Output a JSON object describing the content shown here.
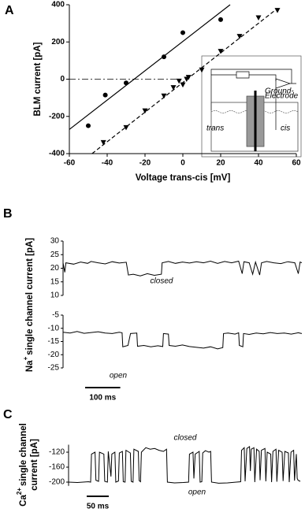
{
  "chart_data": [
    {
      "type": "scatter",
      "panel_label": "A",
      "xlabel": "Voltage trans-cis [mV]",
      "ylabel": "BLM current [pA]",
      "xlim": [
        -60,
        60
      ],
      "xticks": [
        -60,
        -40,
        -20,
        0,
        20,
        40,
        60
      ],
      "ylim": [
        -400,
        400
      ],
      "yticks": [
        -400,
        -200,
        0,
        200,
        400
      ],
      "series": [
        {
          "marker": "circle",
          "color": "#000000",
          "x": [
            -50,
            -41,
            -30,
            -10,
            0,
            20
          ],
          "values": [
            -250,
            -85,
            -20,
            120,
            250,
            320
          ]
        },
        {
          "marker": "triangle",
          "color": "#000000",
          "x": [
            -42,
            -30,
            -20,
            -10,
            -5,
            -2,
            0,
            2,
            3,
            10,
            20,
            30,
            40,
            50
          ],
          "values": [
            -340,
            -260,
            -170,
            -90,
            -45,
            -10,
            -30,
            0,
            10,
            50,
            150,
            230,
            330,
            370
          ]
        },
        {
          "style": "solid",
          "color": "#000000",
          "x": [
            -60,
            25
          ],
          "values": [
            -270,
            400
          ]
        },
        {
          "style": "dashed",
          "color": "#000000",
          "x": [
            -48,
            50
          ],
          "values": [
            -400,
            380
          ]
        },
        {
          "style": "dashdot",
          "color": "#000000",
          "x": [
            -60,
            0
          ],
          "values": [
            0,
            0
          ]
        }
      ],
      "inset": {
        "labels": [
          "trans",
          "cis",
          "Ground-",
          "Electrode"
        ]
      }
    },
    {
      "type": "line",
      "panel_label": "B",
      "ylabel": {
        "element": "Na",
        "charge": "+",
        "lines": [
          "single channel current [pA]"
        ]
      },
      "annotation": "closed",
      "xlim": [
        0,
        680
      ],
      "ylim": [
        10,
        30
      ],
      "yticks": [
        10,
        15,
        20,
        25,
        30
      ],
      "color": "#000000",
      "x": [
        0,
        5,
        8,
        30,
        50,
        70,
        80,
        100,
        120,
        140,
        160,
        180,
        186,
        200,
        220,
        240,
        260,
        280,
        282,
        300,
        320,
        340,
        360,
        380,
        400,
        420,
        440,
        460,
        480,
        500,
        510,
        515,
        530,
        540,
        548,
        560,
        565,
        580,
        600,
        620,
        640,
        660,
        670,
        675,
        680
      ],
      "values": [
        22,
        18.5,
        22,
        21.5,
        22.3,
        21.8,
        22.5,
        22,
        21.6,
        22.4,
        21.9,
        22.2,
        17.5,
        17.8,
        17.2,
        18,
        17.4,
        17.8,
        22,
        22.5,
        21.8,
        22.3,
        21.9,
        22.4,
        22,
        22.6,
        21.8,
        22.5,
        22,
        22.6,
        18,
        22.4,
        22,
        17.8,
        22.3,
        17.5,
        22,
        22.5,
        22,
        21.7,
        22.4,
        22,
        18,
        22.3,
        22
      ]
    },
    {
      "type": "line",
      "annotation": "open",
      "scalebar": {
        "value": 100,
        "label": "100 ms"
      },
      "xlim": [
        0,
        680
      ],
      "ylim": [
        -25,
        -5
      ],
      "yticks": [
        -25,
        -20,
        -15,
        -10,
        -5
      ],
      "color": "#000000",
      "x": [
        0,
        20,
        40,
        60,
        80,
        100,
        120,
        140,
        160,
        168,
        170,
        185,
        192,
        210,
        212,
        230,
        250,
        270,
        284,
        286,
        300,
        302,
        320,
        340,
        360,
        380,
        400,
        420,
        440,
        455,
        457,
        470,
        490,
        500,
        502,
        512,
        514,
        530,
        550,
        570,
        590,
        610,
        630,
        650,
        670,
        680
      ],
      "values": [
        -11.5,
        -11.8,
        -11.2,
        -11.9,
        -11.6,
        -11.3,
        -11.8,
        -12,
        -11.5,
        -11.7,
        -17,
        -16.5,
        -12,
        -11.8,
        -16.8,
        -16.5,
        -17,
        -16.6,
        -16.9,
        -12,
        -12.2,
        -16.5,
        -16.8,
        -16.3,
        -16.9,
        -17.2,
        -17.5,
        -17,
        -17.8,
        -17.3,
        -12,
        -11.8,
        -12.2,
        -11.7,
        -16.5,
        -17,
        -12,
        -12.3,
        -11.8,
        -12.1,
        -11.6,
        -12,
        -11.8,
        -12.2,
        -11.7,
        -12
      ]
    },
    {
      "type": "line",
      "panel_label": "C",
      "ylabel": {
        "element": "Ca",
        "charge": "2+",
        "lines": [
          "single channel",
          "current [pA]"
        ]
      },
      "annotations": [
        "closed",
        "open"
      ],
      "scalebar": {
        "value": 50,
        "label": "50 ms"
      },
      "xlim": [
        0,
        525
      ],
      "ylim": [
        -210,
        -100
      ],
      "yticks": [
        -120,
        -160,
        -200
      ],
      "color": "#000000",
      "x": [
        0,
        20,
        45,
        50,
        52,
        60,
        62,
        68,
        70,
        80,
        82,
        88,
        90,
        96,
        98,
        105,
        107,
        113,
        115,
        122,
        124,
        128,
        130,
        140,
        142,
        146,
        148,
        158,
        160,
        163,
        165,
        175,
        185,
        195,
        205,
        215,
        222,
        224,
        240,
        260,
        272,
        274,
        282,
        284,
        287,
        296,
        298,
        302,
        304,
        310,
        318,
        322,
        324,
        340,
        360,
        380,
        390,
        392,
        398,
        400,
        404,
        410,
        412,
        414,
        420,
        422,
        426,
        432,
        434,
        437,
        445,
        447,
        450,
        458,
        460,
        463,
        470,
        472,
        476,
        484,
        486,
        490,
        498,
        500,
        504,
        510,
        512,
        516,
        518,
        520,
        525
      ],
      "values": [
        -200,
        -201,
        -199,
        -200,
        -125,
        -120,
        -195,
        -198,
        -120,
        -125,
        -198,
        -200,
        -118,
        -185,
        -125,
        -120,
        -200,
        -197,
        -122,
        -118,
        -199,
        -200,
        -115,
        -122,
        -198,
        -200,
        -112,
        -118,
        -196,
        -199,
        -120,
        -108,
        -112,
        -110,
        -115,
        -118,
        -112,
        -200,
        -202,
        -201,
        -200,
        -125,
        -120,
        -190,
        -125,
        -118,
        -200,
        -199,
        -122,
        -116,
        -120,
        -118,
        -200,
        -203,
        -202,
        -200,
        -199,
        -115,
        -108,
        -198,
        -110,
        -105,
        -170,
        -112,
        -108,
        -200,
        -112,
        -118,
        -195,
        -115,
        -110,
        -198,
        -120,
        -125,
        -200,
        -118,
        -112,
        -199,
        -115,
        -120,
        -197,
        -118,
        -122,
        -200,
        -120,
        -115,
        -196,
        -125,
        -190,
        -195,
        -198
      ]
    }
  ]
}
